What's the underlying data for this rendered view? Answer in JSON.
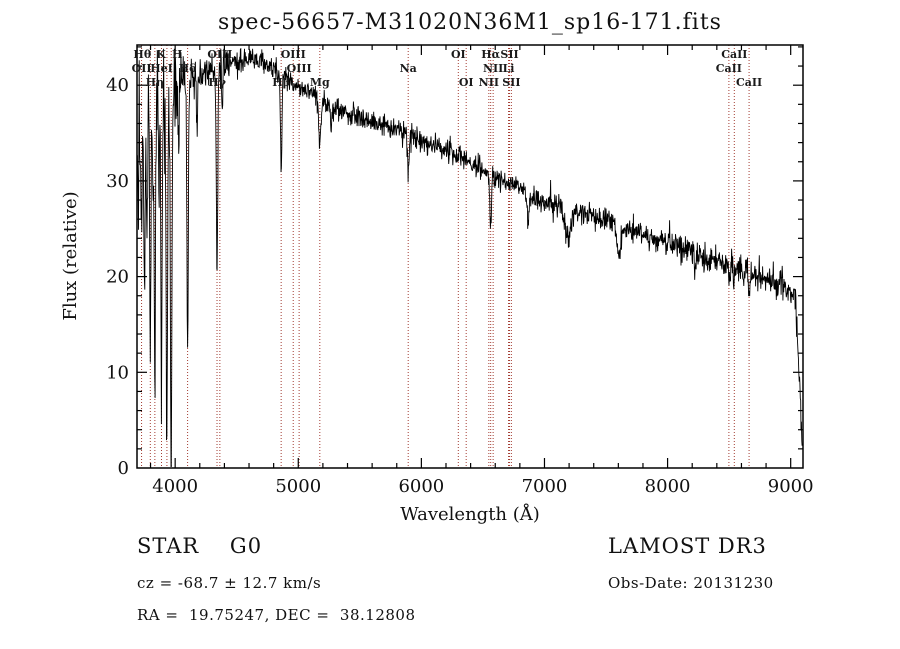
{
  "title": "spec-56657-M31020N36M1_sp16-171.fits",
  "annotations": {
    "class_label": "STAR    G0",
    "survey": "LAMOST DR3",
    "cz": "cz = -68.7 ± 12.7 km/s",
    "obs_date": "Obs-Date: 20131230",
    "radec": "RA =  19.75247, DEC =  38.12808"
  },
  "chart_data": {
    "type": "line",
    "title": "spec-56657-M31020N36M1_sp16-171.fits",
    "xlabel": "Wavelength (Å)",
    "ylabel": "Flux (relative)",
    "xlim": [
      3690,
      9100
    ],
    "ylim": [
      0,
      44.2
    ],
    "x_ticks": [
      4000,
      5000,
      6000,
      7000,
      8000,
      9000
    ],
    "y_ticks": [
      0,
      10,
      20,
      30,
      40
    ],
    "x_minor_step": 200,
    "y_minor_step": 2,
    "grid": false,
    "line_color": "#000000",
    "marker_color": "#a33c32",
    "label_color": "#1a1a1a",
    "seed": 88,
    "continuum": [
      [
        3690,
        31
      ],
      [
        3730,
        35
      ],
      [
        3780,
        37.5
      ],
      [
        3850,
        38.5
      ],
      [
        3950,
        39.5
      ],
      [
        4050,
        40.5
      ],
      [
        4200,
        41.2
      ],
      [
        4350,
        41.8
      ],
      [
        4500,
        42.4
      ],
      [
        4650,
        42.7
      ],
      [
        4750,
        42.2
      ],
      [
        4861,
        41.2
      ],
      [
        5000,
        39.9
      ],
      [
        5100,
        39.2
      ],
      [
        5200,
        38.3
      ],
      [
        5300,
        37.6
      ],
      [
        5450,
        36.8
      ],
      [
        5600,
        36.2
      ],
      [
        5750,
        35.6
      ],
      [
        5900,
        34.8
      ],
      [
        6050,
        34
      ],
      [
        6200,
        33.2
      ],
      [
        6350,
        32.2
      ],
      [
        6500,
        31
      ],
      [
        6650,
        30
      ],
      [
        6800,
        29.3
      ],
      [
        6950,
        28
      ],
      [
        7100,
        27.2
      ],
      [
        7250,
        26.6
      ],
      [
        7400,
        26.2
      ],
      [
        7550,
        25.6
      ],
      [
        7700,
        24.9
      ],
      [
        7850,
        24.2
      ],
      [
        8000,
        23.4
      ],
      [
        8150,
        22.8
      ],
      [
        8300,
        22
      ],
      [
        8450,
        21.4
      ],
      [
        8600,
        20.6
      ],
      [
        8750,
        19.9
      ],
      [
        8900,
        19.2
      ],
      [
        9000,
        18.7
      ],
      [
        9035,
        18.4
      ],
      [
        9060,
        13
      ],
      [
        9080,
        6
      ],
      [
        9095,
        1.5
      ]
    ],
    "absorption_features": [
      {
        "wavelength": 3727,
        "depth": 10,
        "width": 5
      },
      {
        "wavelength": 3750,
        "depth": 18,
        "width": 5
      },
      {
        "wavelength": 3771,
        "depth": 15,
        "width": 4
      },
      {
        "wavelength": 3798,
        "depth": 26,
        "width": 5
      },
      {
        "wavelength": 3820,
        "depth": 10,
        "width": 4
      },
      {
        "wavelength": 3835,
        "depth": 32,
        "width": 5
      },
      {
        "wavelength": 3868,
        "depth": 12,
        "width": 4
      },
      {
        "wavelength": 3889,
        "depth": 28,
        "width": 5
      },
      {
        "wavelength": 3933,
        "depth": 36,
        "width": 6
      },
      {
        "wavelength": 3968,
        "depth": 41,
        "width": 6
      },
      {
        "wavelength": 4026,
        "depth": 8,
        "width": 4
      },
      {
        "wavelength": 4101,
        "depth": 28,
        "width": 6
      },
      {
        "wavelength": 4178,
        "depth": 6,
        "width": 4
      },
      {
        "wavelength": 4340,
        "depth": 21,
        "width": 6
      },
      {
        "wavelength": 4383,
        "depth": 5,
        "width": 4
      },
      {
        "wavelength": 4861,
        "depth": 10,
        "width": 6
      },
      {
        "wavelength": 5175,
        "depth": 4.5,
        "width": 10
      },
      {
        "wavelength": 5269,
        "depth": 2.5,
        "width": 6
      },
      {
        "wavelength": 5893,
        "depth": 3.5,
        "width": 7
      },
      {
        "wavelength": 6563,
        "depth": 5.5,
        "width": 7
      },
      {
        "wavelength": 6867,
        "depth": 3,
        "width": 10
      },
      {
        "wavelength": 7190,
        "depth": 2.8,
        "width": 22
      },
      {
        "wavelength": 7605,
        "depth": 3.2,
        "width": 15
      },
      {
        "wavelength": 8230,
        "depth": 1.5,
        "width": 10
      },
      {
        "wavelength": 8498,
        "depth": 1.8,
        "width": 6
      },
      {
        "wavelength": 8542,
        "depth": 2.2,
        "width": 6
      },
      {
        "wavelength": 8662,
        "depth": 2.2,
        "width": 6
      }
    ],
    "noise_sigma": [
      [
        3690,
        2.5
      ],
      [
        4050,
        1.0
      ],
      [
        4450,
        0.6
      ],
      [
        6000,
        0.55
      ],
      [
        7000,
        0.6
      ],
      [
        8000,
        0.75
      ],
      [
        8900,
        0.9
      ]
    ],
    "spectral_lines": [
      {
        "label": "OII",
        "wavelength": 3727,
        "row": 2
      },
      {
        "label": "Hθ",
        "wavelength": 3798,
        "row": 1,
        "dx": -8
      },
      {
        "label": "Hη",
        "wavelength": 3835,
        "row": 3
      },
      {
        "label": "HeI",
        "wavelength": 3889,
        "row": 2
      },
      {
        "label": "K",
        "wavelength": 3933,
        "row": 1,
        "dx": -6
      },
      {
        "label": "H",
        "wavelength": 3968,
        "row": 1,
        "dx": 6
      },
      {
        "label": "Hδ",
        "wavelength": 4101,
        "row": 2
      },
      {
        "label": "Hγ",
        "wavelength": 4340,
        "row": 3
      },
      {
        "label": "OIII",
        "wavelength": 4363,
        "row": 1
      },
      {
        "label": "Hβ",
        "wavelength": 4861,
        "row": 3
      },
      {
        "label": "OIII",
        "wavelength": 4959,
        "row": 1
      },
      {
        "label": "OIII",
        "wavelength": 5007,
        "row": 2
      },
      {
        "label": "Mg",
        "wavelength": 5175,
        "row": 3
      },
      {
        "label": "Na",
        "wavelength": 5893,
        "row": 2
      },
      {
        "label": "OI",
        "wavelength": 6300,
        "row": 1
      },
      {
        "label": "OI",
        "wavelength": 6364,
        "row": 3
      },
      {
        "label": "NII",
        "wavelength": 6548,
        "row": 3
      },
      {
        "label": "Hα",
        "wavelength": 6563,
        "row": 1
      },
      {
        "label": "NII",
        "wavelength": 6583,
        "row": 2
      },
      {
        "label": "Li",
        "wavelength": 6708,
        "row": 2
      },
      {
        "label": "SII",
        "wavelength": 6716,
        "row": 1
      },
      {
        "label": "SII",
        "wavelength": 6731,
        "row": 3
      },
      {
        "label": "CaII",
        "wavelength": 8498,
        "row": 2
      },
      {
        "label": "CaII",
        "wavelength": 8542,
        "row": 1
      },
      {
        "label": "CaII",
        "wavelength": 8662,
        "row": 3
      }
    ]
  }
}
